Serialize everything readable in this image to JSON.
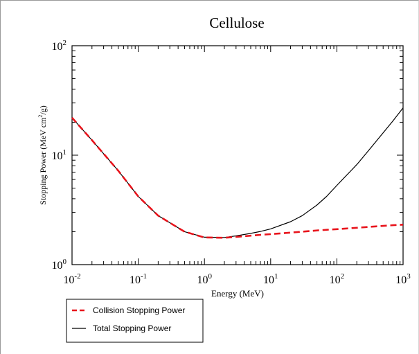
{
  "chart_data": {
    "type": "line",
    "title": "Cellulose",
    "xlabel": "Energy (MeV)",
    "ylabel_parts": [
      "Stopping Power (MeV cm",
      "2",
      "/g)"
    ],
    "x_scale": "log",
    "y_scale": "log",
    "xlim": [
      0.01,
      1000
    ],
    "ylim": [
      1,
      100
    ],
    "x_ticks": [
      {
        "value": 0.01,
        "base": "10",
        "exp": "-2"
      },
      {
        "value": 0.1,
        "base": "10",
        "exp": "-1"
      },
      {
        "value": 1,
        "base": "10",
        "exp": "0"
      },
      {
        "value": 10,
        "base": "10",
        "exp": "1"
      },
      {
        "value": 100,
        "base": "10",
        "exp": "2"
      },
      {
        "value": 1000,
        "base": "10",
        "exp": "3"
      }
    ],
    "y_ticks": [
      {
        "value": 1,
        "base": "10",
        "exp": "0"
      },
      {
        "value": 10,
        "base": "10",
        "exp": "1"
      },
      {
        "value": 100,
        "base": "10",
        "exp": "2"
      }
    ],
    "grid": false,
    "legend_position": "below plot, left",
    "series": [
      {
        "name": "Total Stopping Power",
        "color": "#000000",
        "dash": "solid",
        "x": [
          0.01,
          0.02,
          0.05,
          0.1,
          0.2,
          0.5,
          1,
          2,
          3,
          5,
          7,
          10,
          20,
          30,
          50,
          70,
          100,
          200,
          300,
          500,
          700,
          1000
        ],
        "y": [
          22,
          13.7,
          7.2,
          4.2,
          2.8,
          2.0,
          1.78,
          1.77,
          1.83,
          1.93,
          2.01,
          2.12,
          2.47,
          2.8,
          3.5,
          4.2,
          5.3,
          8.2,
          11.0,
          16.0,
          20.5,
          27.0
        ]
      },
      {
        "name": "Collision Stopping Power",
        "color": "#e8141c",
        "dash": "dashed",
        "x": [
          0.01,
          0.02,
          0.05,
          0.1,
          0.2,
          0.5,
          1,
          2,
          3,
          5,
          7,
          10,
          20,
          30,
          50,
          70,
          100,
          200,
          300,
          500,
          700,
          1000
        ],
        "y": [
          22,
          13.7,
          7.2,
          4.2,
          2.8,
          2.0,
          1.77,
          1.76,
          1.79,
          1.84,
          1.87,
          1.9,
          1.96,
          2.0,
          2.05,
          2.08,
          2.11,
          2.17,
          2.21,
          2.26,
          2.29,
          2.32
        ]
      }
    ]
  }
}
